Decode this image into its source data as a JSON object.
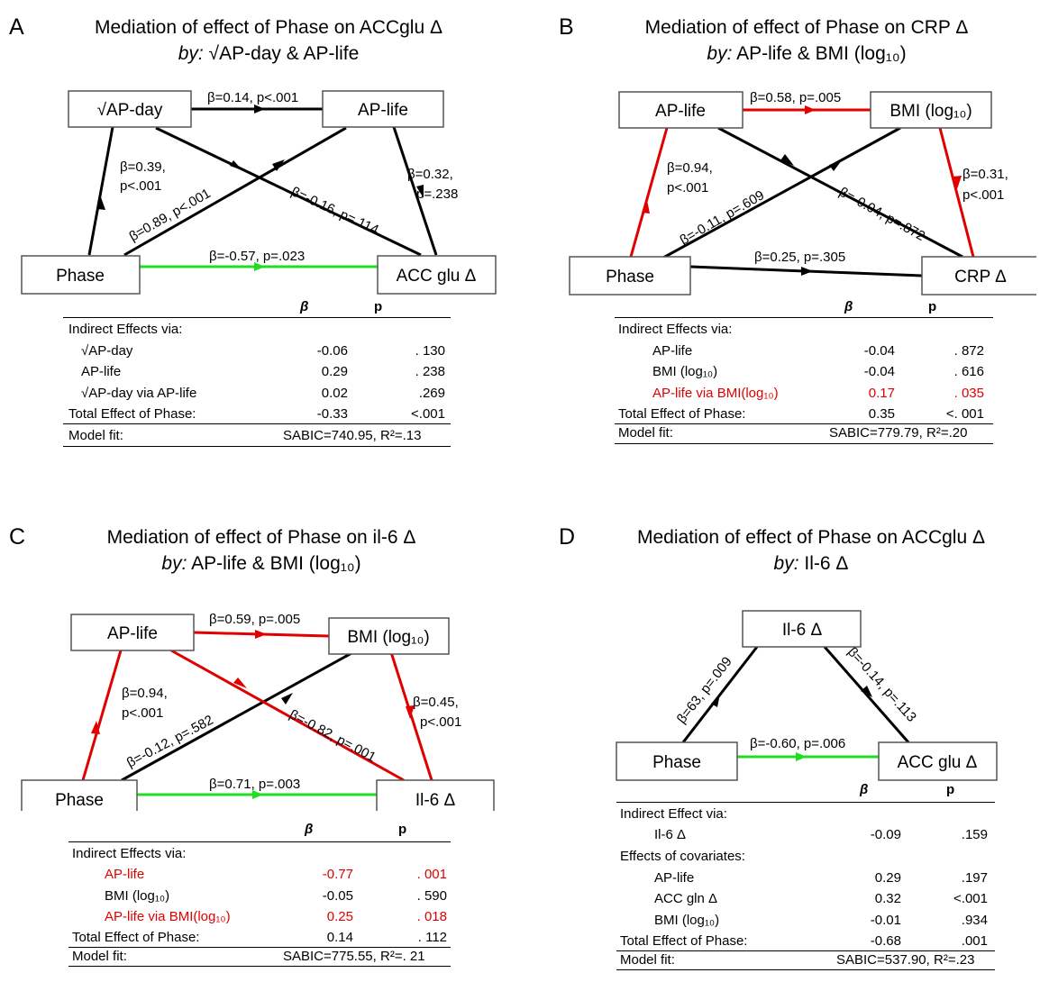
{
  "panels": {
    "a": {
      "letter": "A",
      "title_line1": "Mediation of effect of Phase on ACCglu Δ",
      "title_by": "by:",
      "title_rest": " √AP-day & AP-life",
      "nodes": {
        "n1": "√AP-day",
        "n2": "AP-life",
        "x": "Phase",
        "y": "ACC glu Δ"
      },
      "edges": {
        "e1": "β=0.14, p<.001",
        "e2a": "β=0.39,",
        "e2b": "p<.001",
        "e3a": "β=0.32,",
        "e3b": "p=.238",
        "e4": "β=0.89, p<.001",
        "e5": "β=-0.16, p=.114",
        "e6": "β=-0.57, p=.023"
      },
      "table": {
        "header_b": "β",
        "header_p": "p",
        "rows": [
          {
            "label": "Indirect Effects via:",
            "b": "",
            "p": ""
          },
          {
            "label": "√AP-day",
            "b": "-0.06",
            "p": ". 130"
          },
          {
            "label": "AP-life",
            "b": "0.29",
            "p": ". 238"
          },
          {
            "label": "√AP-day via AP-life",
            "b": "0.02",
            "p": ".269"
          },
          {
            "label": "Total Effect of Phase:",
            "b": "-0.33",
            "p": "<.001"
          }
        ],
        "fit_label": "Model fit:",
        "fit_value": "SABIC=740.95, R²=.13"
      }
    },
    "b": {
      "letter": "B",
      "title_line1": "Mediation of effect of Phase on CRP Δ",
      "title_by": "by:",
      "title_rest": " AP-life & BMI (log₁₀)",
      "nodes": {
        "n1": "AP-life",
        "n2": "BMI (log₁₀)",
        "x": "Phase",
        "y": "CRP Δ"
      },
      "edges": {
        "e1": "β=0.58, p=.005",
        "e2a": "β=0.94,",
        "e2b": "p<.001",
        "e3a": "β=0.31,",
        "e3b": "p<.001",
        "e4": "β=-0.11, p=.609",
        "e5": "β=-0.04, p=.872",
        "e6": "β=0.25, p=.305"
      },
      "table": {
        "header_b": "β",
        "header_p": "p",
        "rows": [
          {
            "label": "Indirect Effects via:",
            "b": "",
            "p": ""
          },
          {
            "label": "AP-life",
            "b": "-0.04",
            "p": ". 872"
          },
          {
            "label": "BMI (log₁₀)",
            "b": "-0.04",
            "p": ". 616"
          },
          {
            "label": "AP-life via BMI(log₁₀)",
            "b": "0.17",
            "p": ". 035"
          },
          {
            "label": "Total Effect of Phase:",
            "b": "0.35",
            "p": "<. 001"
          }
        ],
        "fit_label": "Model fit:",
        "fit_value": "SABIC=779.79, R²=.20"
      }
    },
    "c": {
      "letter": "C",
      "title_line1": "Mediation of effect of Phase on il-6 Δ",
      "title_by": "by:",
      "title_rest": " AP-life & BMI (log₁₀)",
      "nodes": {
        "n1": "AP-life",
        "n2": "BMI (log₁₀)",
        "x": "Phase",
        "y": "Il-6 Δ"
      },
      "edges": {
        "e1": "β=0.59, p=.005",
        "e2a": "β=0.94,",
        "e2b": "p<.001",
        "e3a": "β=0.45,",
        "e3b": "p<.001",
        "e4": "β=-0.12, p=.582",
        "e5": "β=-0.82, p=.001",
        "e6": "β=0.71, p=.003"
      },
      "table": {
        "header_b": "β",
        "header_p": "p",
        "rows": [
          {
            "label": "Indirect Effects via:",
            "b": "",
            "p": ""
          },
          {
            "label": "AP-life",
            "b": "-0.77",
            "p": ". 001"
          },
          {
            "label": "BMI (log₁₀)",
            "b": "-0.05",
            "p": ". 590"
          },
          {
            "label": "AP-life via BMI(log₁₀)",
            "b": "0.25",
            "p": ". 018"
          },
          {
            "label": "Total Effect of Phase:",
            "b": "0.14",
            "p": ". 112"
          }
        ],
        "fit_label": "Model fit:",
        "fit_value": "SABIC=775.55, R²=. 21"
      }
    },
    "d": {
      "letter": "D",
      "title_line1": "Mediation of effect of Phase on ACCglu Δ",
      "title_by": "by:",
      "title_rest": " Il-6 Δ",
      "nodes": {
        "n1": "Il-6 Δ",
        "x": "Phase",
        "y": "ACC glu Δ"
      },
      "edges": {
        "e1": "β=63, p=.009",
        "e2": "β=-0.14, p=.113",
        "e3": "β=-0.60, p=.006"
      },
      "table": {
        "header_b": "β",
        "header_p": "p",
        "rows": [
          {
            "label": "Indirect Effect via:",
            "b": "",
            "p": ""
          },
          {
            "label": "Il-6 Δ",
            "b": "-0.09",
            "p": ".159"
          },
          {
            "label": "Effects of covariates:",
            "b": "",
            "p": ""
          },
          {
            "label": "AP-life",
            "b": "0.29",
            "p": ".197"
          },
          {
            "label": "ACC gln Δ",
            "b": "0.32",
            "p": "<.001"
          },
          {
            "label": "BMI (log₁₀)",
            "b": "-0.01",
            "p": ".934"
          },
          {
            "label": "Total Effect of Phase:",
            "b": "-0.68",
            "p": ".001"
          }
        ],
        "fit_label": "Model fit:",
        "fit_value": "SABIC=537.90, R²=.23"
      }
    }
  },
  "colors": {
    "black": "#000000",
    "red": "#e00000",
    "green": "#22dd22"
  }
}
